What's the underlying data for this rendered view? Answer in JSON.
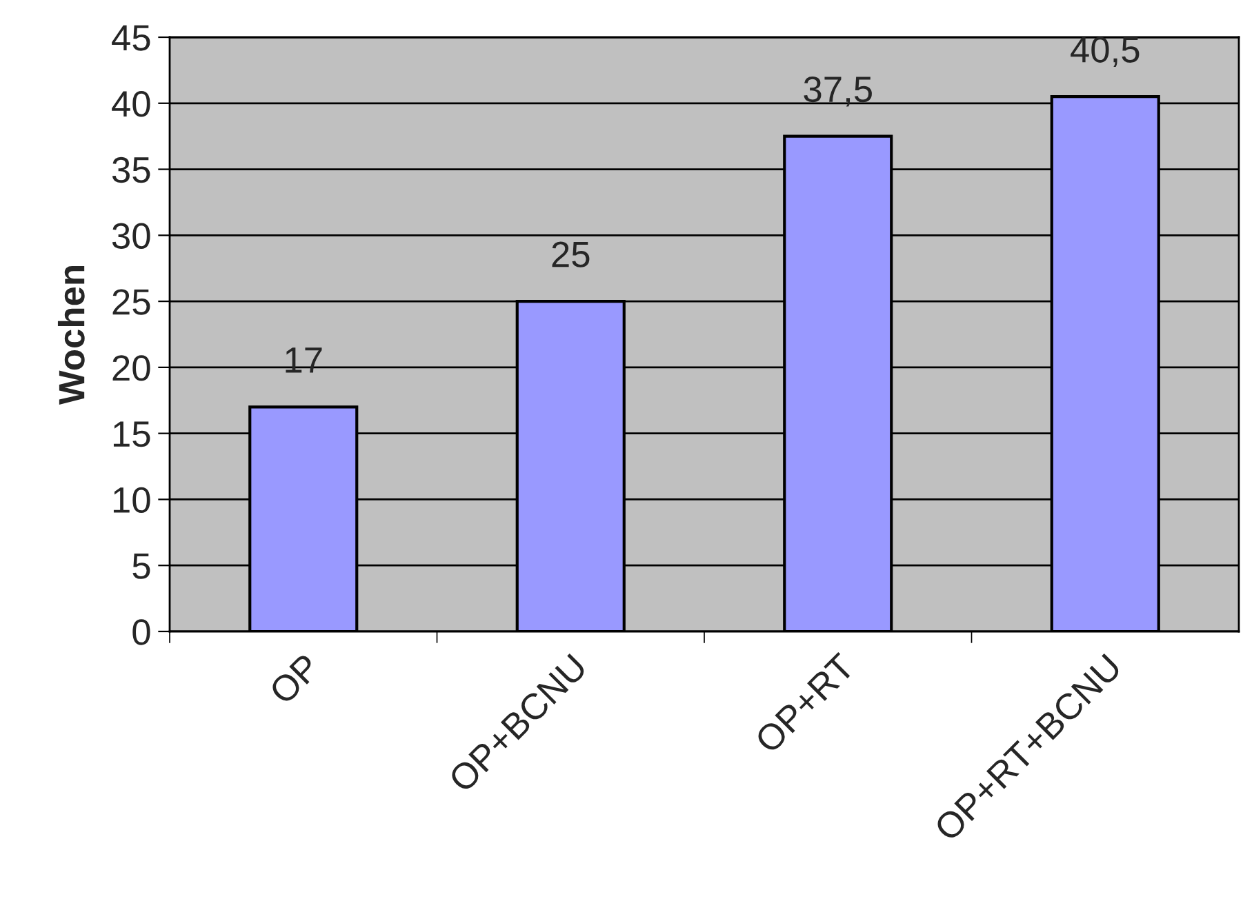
{
  "chart_data": {
    "type": "bar",
    "ylabel": "Wochen",
    "categories": [
      "OP",
      "OP+BCNU",
      "OP+RT",
      "OP+RT+BCNU"
    ],
    "values": [
      17,
      25,
      37.5,
      40.5
    ],
    "value_labels": [
      "17",
      "25",
      "37,5",
      "40,5"
    ],
    "color": "#9999ff",
    "ylim": [
      0,
      45
    ],
    "yticks": [
      0,
      5,
      10,
      15,
      20,
      25,
      30,
      35,
      40,
      45
    ],
    "grid": "y"
  }
}
